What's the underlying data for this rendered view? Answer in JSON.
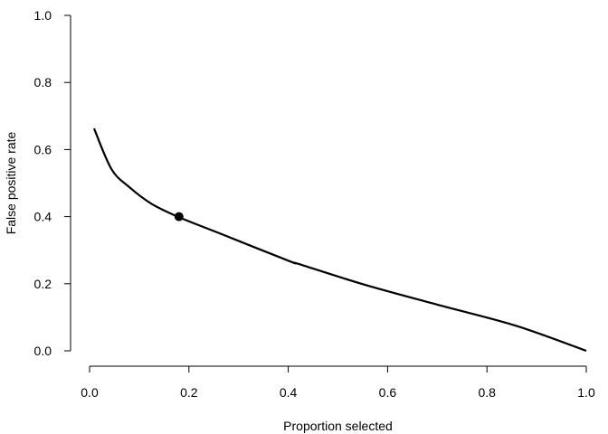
{
  "chart_data": {
    "type": "line",
    "title": "",
    "xlabel": "Proportion selected",
    "ylabel": "False positive rate",
    "xlim": [
      0,
      1
    ],
    "ylim": [
      0,
      1
    ],
    "grid": false,
    "x_ticks": [
      "0.0",
      "0.2",
      "0.4",
      "0.6",
      "0.8",
      "1.0"
    ],
    "y_ticks": [
      "0.0",
      "0.2",
      "0.4",
      "0.6",
      "0.8",
      "1.0"
    ],
    "series": [
      {
        "color": "#000000",
        "x": [
          0.009,
          0.044,
          0.08,
          0.124,
          0.179,
          0.257,
          0.403,
          0.421,
          0.554,
          0.707,
          0.858,
          1.0
        ],
        "y": [
          0.663,
          0.542,
          0.488,
          0.439,
          0.399,
          0.353,
          0.267,
          0.259,
          0.197,
          0.135,
          0.075,
          0.0
        ]
      }
    ],
    "highlight_point": {
      "x": 0.18,
      "y": 0.4,
      "color": "#000000"
    }
  }
}
